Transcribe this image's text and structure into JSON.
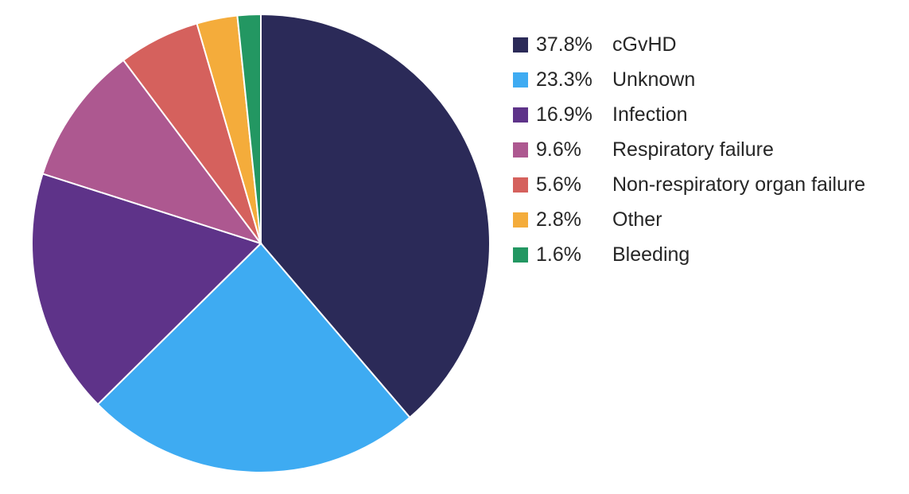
{
  "chart_data": {
    "type": "pie",
    "title": "",
    "slices": [
      {
        "label": "cGvHD",
        "value": 37.8,
        "value_label": "37.8%",
        "color": "#2b2a58"
      },
      {
        "label": "Unknown",
        "value": 23.3,
        "value_label": "23.3%",
        "color": "#3eabf2"
      },
      {
        "label": "Infection",
        "value": 16.9,
        "value_label": "16.9%",
        "color": "#5e3389"
      },
      {
        "label": "Respiratory failure",
        "value": 9.6,
        "value_label": "9.6%",
        "color": "#ad5890"
      },
      {
        "label": "Non-respiratory organ failure",
        "value": 5.6,
        "value_label": "5.6%",
        "color": "#d5615d"
      },
      {
        "label": "Other",
        "value": 2.8,
        "value_label": "2.8%",
        "color": "#f4ac3b"
      },
      {
        "label": "Bleeding",
        "value": 1.6,
        "value_label": "1.6%",
        "color": "#239762"
      }
    ],
    "start_angle": "12 o'clock",
    "direction": "clockwise",
    "legend_position": "right"
  }
}
